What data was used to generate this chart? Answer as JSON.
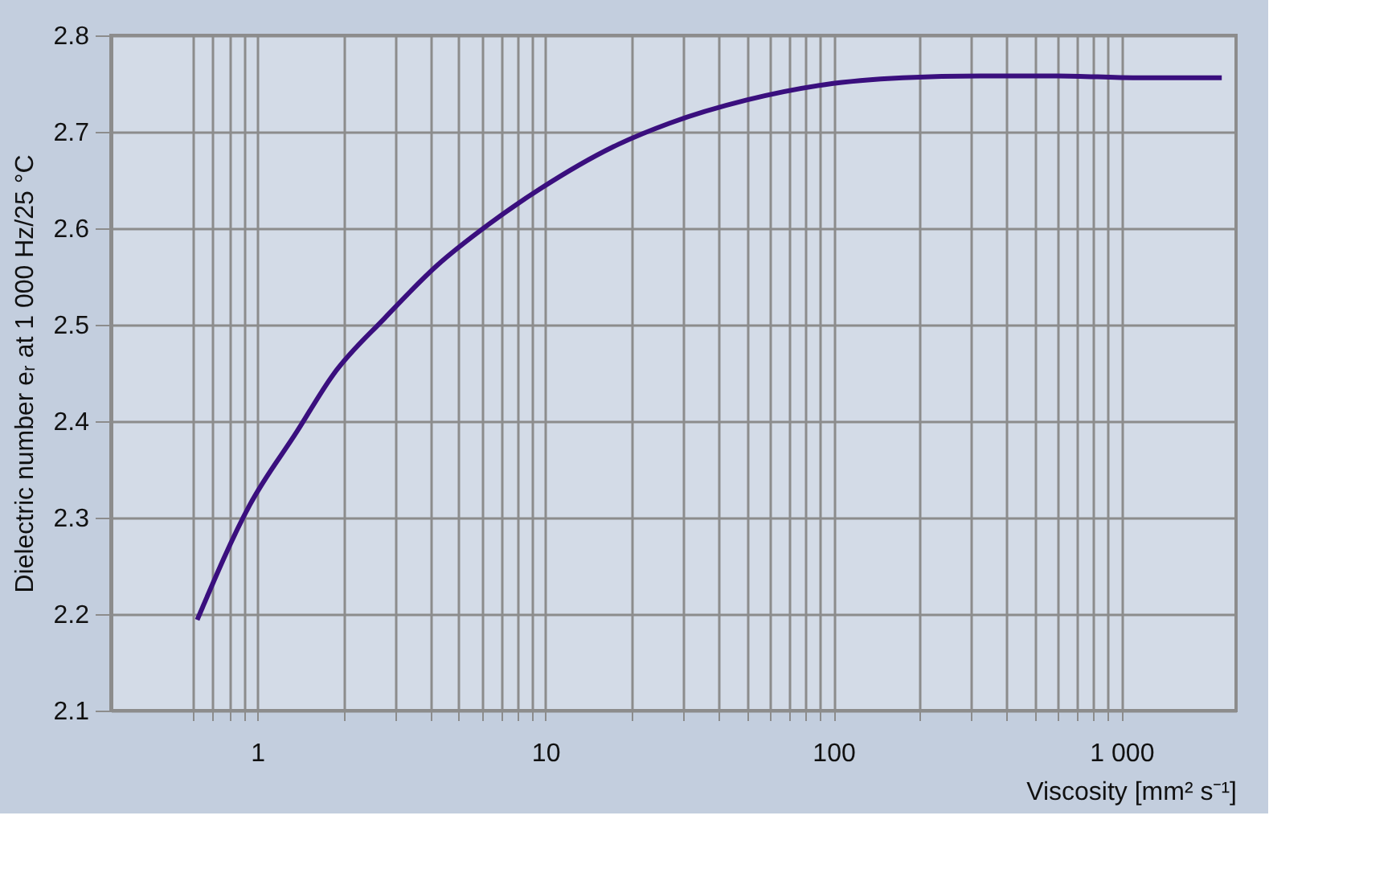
{
  "chart_data": {
    "type": "line",
    "xlabel": "Viscosity [mm² s⁻¹]",
    "ylabel": "Dielectric number eᵣ at 1 000 Hz/25 °C",
    "log": "x",
    "grid": true,
    "marker": "none",
    "line_style": "solid",
    "xlim": [
      0.31,
      2500
    ],
    "ylim": [
      2.1,
      2.8
    ],
    "xticks": [
      {
        "value": 0.6,
        "label": null
      },
      {
        "value": 0.7,
        "label": null
      },
      {
        "value": 0.8,
        "label": null
      },
      {
        "value": 0.9,
        "label": null
      },
      1,
      {
        "value": 2,
        "label": null
      },
      {
        "value": 3,
        "label": null
      },
      {
        "value": 4,
        "label": null
      },
      {
        "value": 5,
        "label": null
      },
      {
        "value": 6,
        "label": null
      },
      {
        "value": 7,
        "label": null
      },
      {
        "value": 8,
        "label": null
      },
      {
        "value": 9,
        "label": null
      },
      10,
      {
        "value": 20,
        "label": null
      },
      {
        "value": 30,
        "label": null
      },
      {
        "value": 40,
        "label": null
      },
      {
        "value": 50,
        "label": null
      },
      {
        "value": 60,
        "label": null
      },
      {
        "value": 70,
        "label": null
      },
      {
        "value": 80,
        "label": null
      },
      {
        "value": 90,
        "label": null
      },
      100,
      {
        "value": 200,
        "label": null
      },
      {
        "value": 300,
        "label": null
      },
      {
        "value": 400,
        "label": null
      },
      {
        "value": 500,
        "label": null
      },
      {
        "value": 600,
        "label": null
      },
      {
        "value": 700,
        "label": null
      },
      {
        "value": 800,
        "label": null
      },
      {
        "value": 900,
        "label": null
      },
      {
        "value": 1000,
        "label": "1 000"
      }
    ],
    "yticks": [
      2.1,
      2.2,
      2.3,
      2.4,
      2.5,
      2.6,
      2.7,
      2.8
    ],
    "series": [
      {
        "color": "#3a0f7e",
        "x": [
          0.618,
          0.94,
          1.37,
          1.83,
          2.77,
          4.19,
          6.35,
          9.6,
          17.9,
          27,
          50,
          93.6,
          174,
          324,
          604,
          1125,
          2230
        ],
        "values": [
          2.194,
          2.313,
          2.389,
          2.448,
          2.507,
          2.561,
          2.604,
          2.641,
          2.687,
          2.709,
          2.733,
          2.749,
          2.756,
          2.758,
          2.758,
          2.756,
          2.756
        ]
      }
    ]
  }
}
